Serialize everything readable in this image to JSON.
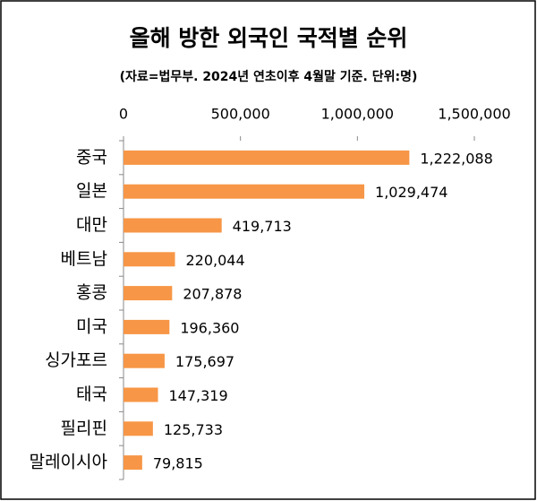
{
  "chart_data": {
    "type": "bar",
    "orientation": "horizontal",
    "title": "올해 방한 외국인 국적별 순위",
    "subtitle": "(자료=법무부. 2024년 연초이후 4월말 기준. 단위:명)",
    "categories": [
      "중국",
      "일본",
      "대만",
      "베트남",
      "홍콩",
      "미국",
      "싱가포르",
      "태국",
      "필리핀",
      "말레이시아"
    ],
    "values": [
      1222088,
      1029474,
      419713,
      220044,
      207878,
      196360,
      175697,
      147319,
      125733,
      79815
    ],
    "value_labels": [
      "1,222,088",
      "1,029,474",
      "419,713",
      "220,044",
      "207,878",
      "196,360",
      "175,697",
      "147,319",
      "125,733",
      "79,815"
    ],
    "color": "#f79646",
    "xlim": [
      0,
      1500000
    ],
    "xticks": [
      0,
      {
        "value": 500000,
        "label": "500,000"
      },
      {
        "value": 1000000,
        "label": "1,000,000"
      },
      {
        "value": 1500000,
        "label": "1,500,000"
      }
    ],
    "grid": false
  }
}
